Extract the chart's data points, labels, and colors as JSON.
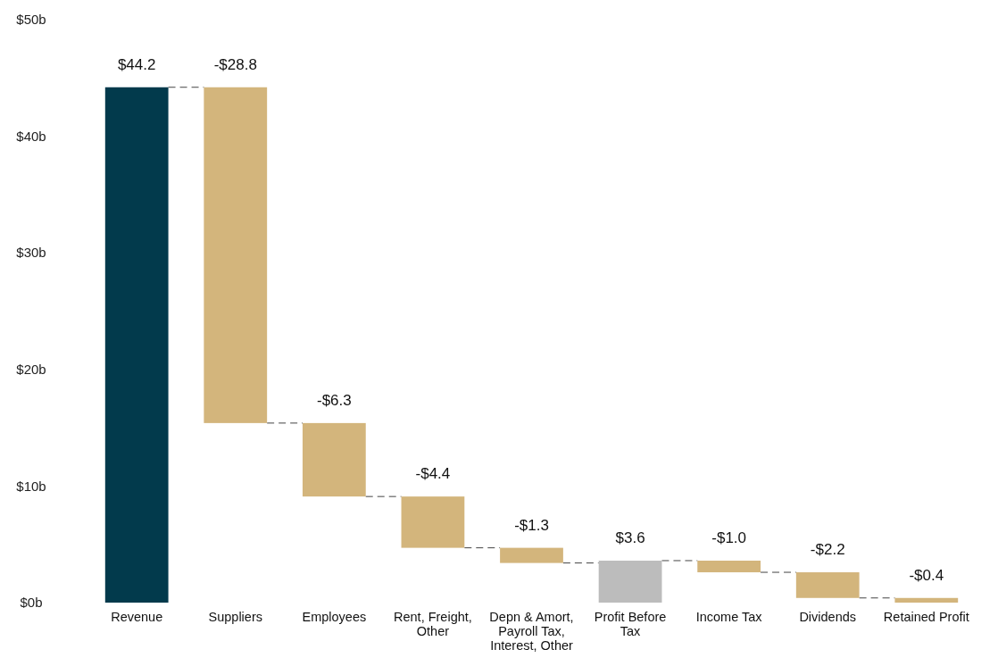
{
  "chart_data": {
    "type": "bar",
    "categories": [
      "Revenue",
      "Suppliers",
      "Employees",
      "Rent, Freight, Other",
      "Depn & Amort, Payroll Tax, Interest, Other",
      "Profit Before Tax",
      "Income Tax",
      "Dividends",
      "Retained Profit"
    ],
    "values": [
      44.2,
      -28.8,
      -6.3,
      -4.4,
      -1.3,
      3.6,
      -1.0,
      -2.2,
      -0.4
    ],
    "base": [
      0,
      44.2,
      15.4,
      9.1,
      4.7,
      0,
      3.6,
      2.6,
      0.4
    ],
    "colors": [
      "#023a4c",
      "#d3b57c",
      "#d3b57c",
      "#d3b57c",
      "#d3b57c",
      "#bcbcbc",
      "#d3b57c",
      "#d3b57c",
      "#d3b57c"
    ],
    "value_labels": [
      "$44.2",
      "-$28.8",
      "-$6.3",
      "-$4.4",
      "-$1.3",
      "$3.6",
      "-$1.0",
      "-$2.2",
      "-$0.4"
    ],
    "ylim": [
      0,
      50
    ],
    "yticks": [
      {
        "value": 0,
        "label": "$0b"
      },
      {
        "value": 10,
        "label": "$10b"
      },
      {
        "value": 20,
        "label": "$20b"
      },
      {
        "value": 30,
        "label": "$30b"
      },
      {
        "value": 40,
        "label": "$40b"
      },
      {
        "value": 50,
        "label": "$50b"
      }
    ],
    "grid": false
  }
}
